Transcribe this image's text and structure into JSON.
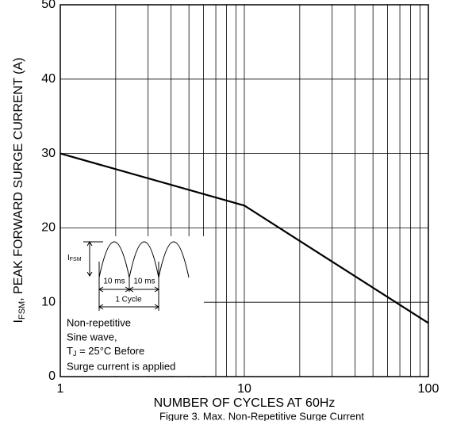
{
  "chart_data": {
    "type": "line",
    "title": "Figure 3. Max. Non-Repetitive Surge Current",
    "x_label": "NUMBER OF CYCLES AT 60Hz",
    "y_label": {
      "main": "I",
      "sub": "FSM",
      "rest": ", PEAK FORWARD SURGE CURRENT (A)"
    },
    "x": [
      1,
      10,
      100
    ],
    "series": [
      {
        "color": "#000000",
        "values": [
          30,
          23,
          7.2
        ]
      }
    ],
    "log_x": true,
    "xlim": [
      1,
      100
    ],
    "xticks": [
      1,
      10,
      100
    ],
    "x_minor_grid": [
      2,
      3,
      4,
      5,
      6,
      7,
      8,
      9,
      20,
      30,
      40,
      50,
      60,
      70,
      80,
      90
    ],
    "ylim": [
      0,
      50
    ],
    "yticks": [
      0,
      10,
      20,
      30,
      40,
      50
    ],
    "grid": true,
    "inset": {
      "peak": {
        "main": "I",
        "sub": "FSM"
      },
      "half": [
        "10 ms",
        "10 ms"
      ],
      "cycle": "1 Cycle"
    },
    "annotation": {
      "line1": "Non-repetitive",
      "line2": "Sine wave,",
      "tj": {
        "main": "T",
        "sub": "J",
        "rest": " = 25°C Before"
      },
      "line4": "Surge current is applied"
    }
  }
}
